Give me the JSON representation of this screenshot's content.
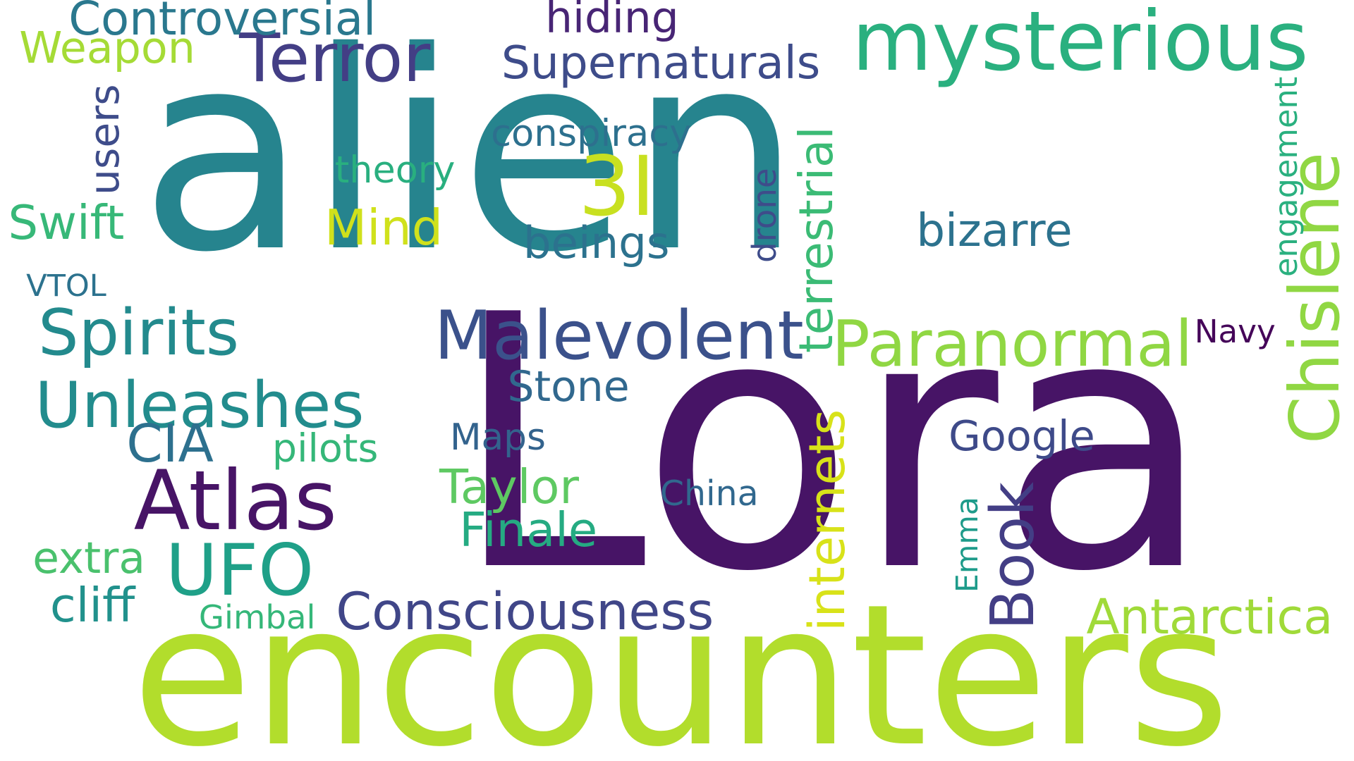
{
  "words": [
    {
      "text": "alien",
      "color": "#26848e",
      "rotated": false
    },
    {
      "text": "Lora",
      "color": "#471466",
      "rotated": false
    },
    {
      "text": "encounters",
      "color": "#b2dd2c",
      "rotated": false
    },
    {
      "text": "mysterious",
      "color": "#2ab07f",
      "rotated": false
    },
    {
      "text": "Malevolent",
      "color": "#3b518b",
      "rotated": false
    },
    {
      "text": "Paranormal",
      "color": "#90d743",
      "rotated": false
    },
    {
      "text": "Terror",
      "color": "#433e85",
      "rotated": false
    },
    {
      "text": "Atlas",
      "color": "#471466",
      "rotated": false
    },
    {
      "text": "UFO",
      "color": "#1fa088",
      "rotated": false
    },
    {
      "text": "Unleashes",
      "color": "#228c8d",
      "rotated": false
    },
    {
      "text": "Spirits",
      "color": "#238a8d",
      "rotated": false
    },
    {
      "text": "3I",
      "color": "#c8e020",
      "rotated": false
    },
    {
      "text": "Consciousness",
      "color": "#404688",
      "rotated": false
    },
    {
      "text": "Mind",
      "color": "#d0e11c",
      "rotated": false
    },
    {
      "text": "Weapon",
      "color": "#a5db36",
      "rotated": false
    },
    {
      "text": "Supernaturals",
      "color": "#3e4c8a",
      "rotated": false
    },
    {
      "text": "Controversial",
      "color": "#2a788e",
      "rotated": false
    },
    {
      "text": "hiding",
      "color": "#482575",
      "rotated": false
    },
    {
      "text": "conspiracy",
      "color": "#2d708e",
      "rotated": false
    },
    {
      "text": "beings",
      "color": "#2c728e",
      "rotated": false
    },
    {
      "text": "bizarre",
      "color": "#2c728e",
      "rotated": false
    },
    {
      "text": "theory",
      "color": "#29af7f",
      "rotated": false
    },
    {
      "text": "Swift",
      "color": "#37b878",
      "rotated": false
    },
    {
      "text": "VTOL",
      "color": "#2c728e",
      "rotated": false
    },
    {
      "text": "CIA",
      "color": "#2d708e",
      "rotated": false
    },
    {
      "text": "pilots",
      "color": "#35b779",
      "rotated": false
    },
    {
      "text": "Stone",
      "color": "#31688e",
      "rotated": false
    },
    {
      "text": "Maps",
      "color": "#33638d",
      "rotated": false
    },
    {
      "text": "Taylor",
      "color": "#5ec962",
      "rotated": false
    },
    {
      "text": "Finale",
      "color": "#25ab82",
      "rotated": false
    },
    {
      "text": "China",
      "color": "#31688e",
      "rotated": false
    },
    {
      "text": "Google",
      "color": "#3e4a89",
      "rotated": false
    },
    {
      "text": "Navy",
      "color": "#450559",
      "rotated": false
    },
    {
      "text": "Antarctica",
      "color": "#a0da39",
      "rotated": false
    },
    {
      "text": "extra",
      "color": "#4ac16d",
      "rotated": false
    },
    {
      "text": "cliff",
      "color": "#21918c",
      "rotated": false
    },
    {
      "text": "Gimbal",
      "color": "#35b779",
      "rotated": false
    },
    {
      "text": "users",
      "color": "#3e4c8a",
      "rotated": true
    },
    {
      "text": "terrestrial",
      "color": "#3bbb75",
      "rotated": true
    },
    {
      "text": "drone",
      "color": "#3e4c8a",
      "rotated": true
    },
    {
      "text": "internets",
      "color": "#d8e219",
      "rotated": true
    },
    {
      "text": "Emma",
      "color": "#1e9b8a",
      "rotated": true
    },
    {
      "text": "Book",
      "color": "#433e85",
      "rotated": true
    },
    {
      "text": "Chislene",
      "color": "#90d743",
      "rotated": true
    },
    {
      "text": "engagement",
      "color": "#2ab07f",
      "rotated": true
    }
  ]
}
